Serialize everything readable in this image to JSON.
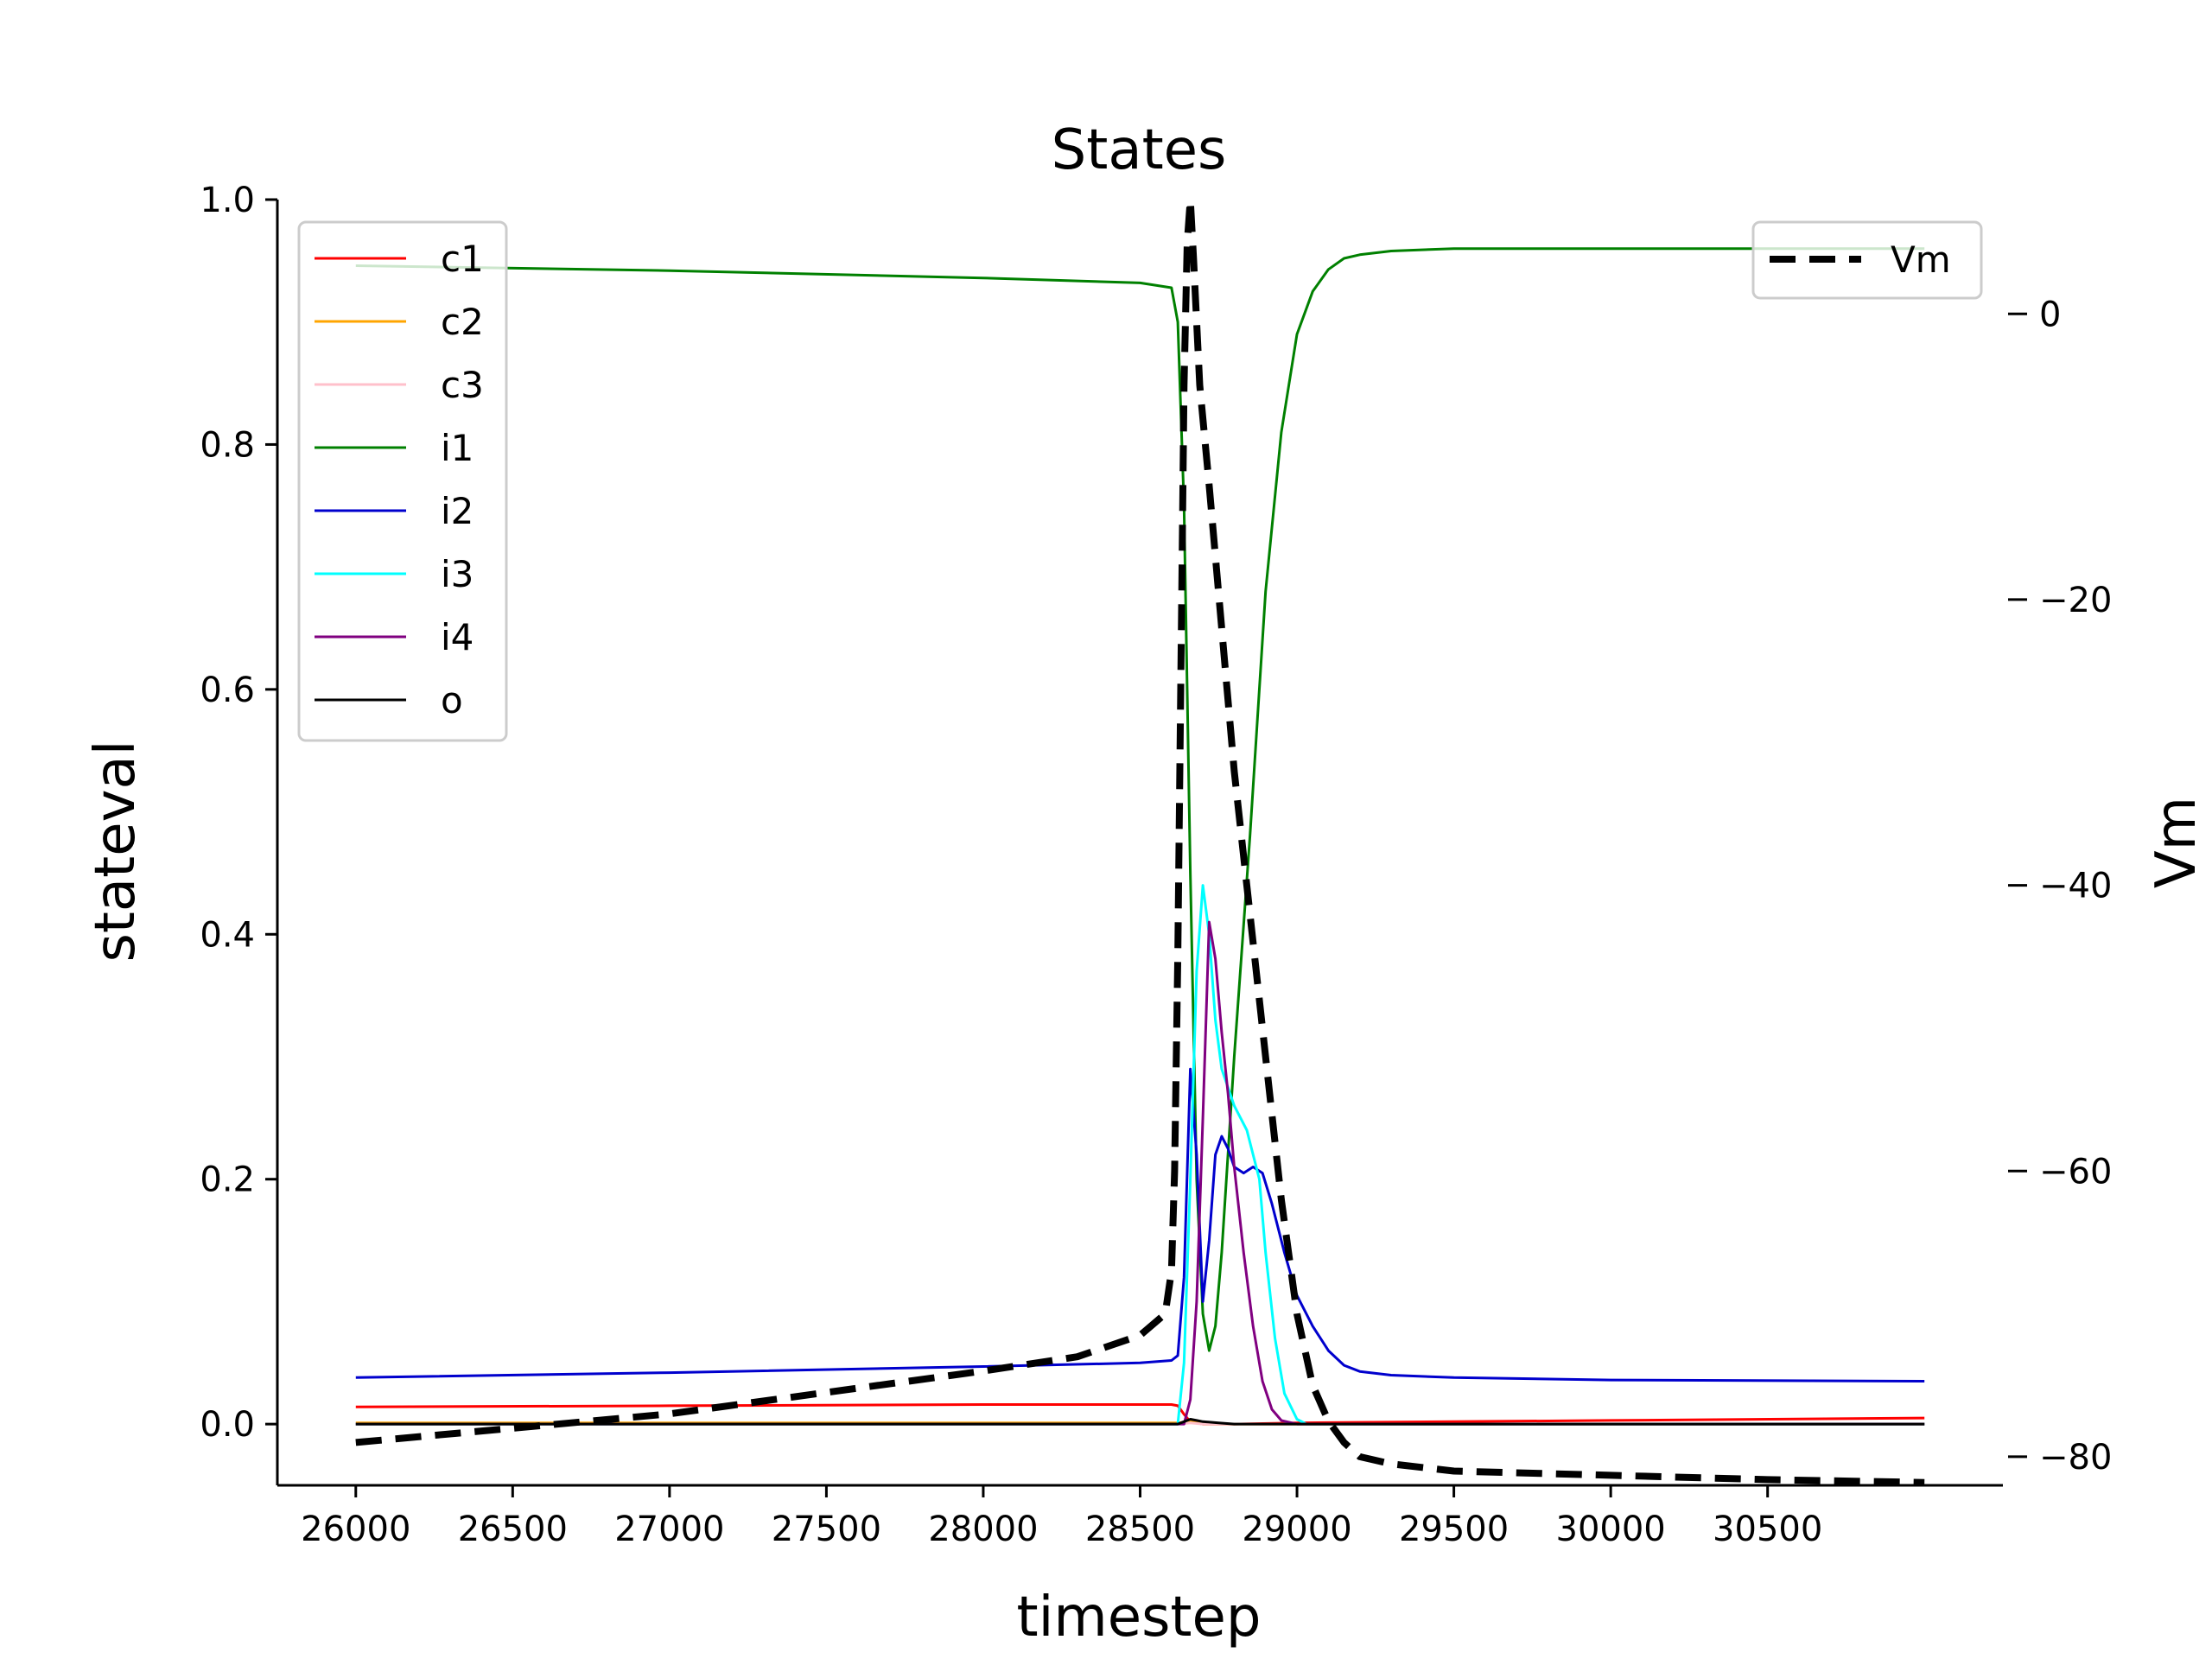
{
  "chart_data": {
    "type": "line",
    "title": "States",
    "xlabel": "timestep",
    "ylabel": "stateval",
    "y2label": "Vm",
    "xlim": [
      25750,
      31250
    ],
    "ylim": [
      -0.05,
      1.0
    ],
    "y2lim": [
      -82,
      8
    ],
    "xticks": [
      26000,
      26500,
      27000,
      27500,
      28000,
      28500,
      29000,
      29500,
      30000,
      30500
    ],
    "yticks": [
      0.0,
      0.2,
      0.4,
      0.6,
      0.8,
      1.0
    ],
    "ytick_labels": [
      "0.0",
      "0.2",
      "0.4",
      "0.6",
      "0.8",
      "1.0"
    ],
    "y2ticks": [
      0,
      -20,
      -40,
      -60,
      -80
    ],
    "y2tick_labels": [
      "0",
      "−20",
      "−40",
      "−60",
      "−80"
    ],
    "grid": false,
    "legend_left": "top-left",
    "legend_right": "top-right",
    "series": [
      {
        "name": "c1",
        "color": "#ff0000",
        "axis": "left",
        "width": 3,
        "x": [
          26000,
          27000,
          28000,
          28600,
          28620,
          28640,
          28660,
          28700,
          28800,
          29000,
          29500,
          30000,
          31000
        ],
        "y": [
          0.014,
          0.015,
          0.016,
          0.016,
          0.015,
          0.008,
          0.002,
          0.0,
          0.0,
          0.001,
          0.002,
          0.003,
          0.005
        ]
      },
      {
        "name": "c2",
        "color": "#ffa500",
        "axis": "left",
        "width": 3,
        "x": [
          26000,
          28620,
          28660,
          28700,
          31000
        ],
        "y": [
          0.001,
          0.001,
          0.002,
          0.0,
          0.0
        ]
      },
      {
        "name": "c3",
        "color": "#ffc0cb",
        "axis": "left",
        "width": 3,
        "x": [
          26000,
          28620,
          28660,
          28700,
          31000
        ],
        "y": [
          0.0,
          0.0,
          0.001,
          0.0,
          0.0
        ]
      },
      {
        "name": "i1",
        "color": "#008000",
        "axis": "left",
        "width": 3,
        "x": [
          26000,
          27000,
          28000,
          28500,
          28600,
          28620,
          28640,
          28660,
          28680,
          28700,
          28720,
          28740,
          28760,
          28800,
          28850,
          28900,
          28950,
          29000,
          29050,
          29100,
          29150,
          29200,
          29300,
          29500,
          30000,
          31000
        ],
        "y": [
          0.946,
          0.942,
          0.936,
          0.932,
          0.928,
          0.9,
          0.75,
          0.45,
          0.2,
          0.09,
          0.06,
          0.08,
          0.14,
          0.3,
          0.48,
          0.68,
          0.81,
          0.89,
          0.925,
          0.943,
          0.952,
          0.955,
          0.958,
          0.96,
          0.96,
          0.96
        ]
      },
      {
        "name": "i2",
        "color": "#0000cd",
        "axis": "left",
        "width": 3,
        "x": [
          26000,
          27000,
          28000,
          28500,
          28600,
          28620,
          28640,
          28660,
          28680,
          28700,
          28720,
          28740,
          28760,
          28780,
          28800,
          28830,
          28860,
          28890,
          28920,
          28960,
          29000,
          29050,
          29100,
          29150,
          29200,
          29300,
          29500,
          30000,
          31000
        ],
        "y": [
          0.038,
          0.042,
          0.047,
          0.05,
          0.052,
          0.056,
          0.12,
          0.29,
          0.22,
          0.1,
          0.15,
          0.22,
          0.235,
          0.225,
          0.21,
          0.205,
          0.21,
          0.205,
          0.18,
          0.14,
          0.105,
          0.08,
          0.06,
          0.048,
          0.043,
          0.04,
          0.038,
          0.036,
          0.035
        ]
      },
      {
        "name": "i3",
        "color": "#00ffff",
        "axis": "left",
        "width": 3,
        "x": [
          26000,
          28620,
          28640,
          28660,
          28680,
          28700,
          28720,
          28740,
          28760,
          28800,
          28840,
          28880,
          28900,
          28930,
          28960,
          29000,
          29030,
          31000
        ],
        "y": [
          0.0,
          0.0,
          0.05,
          0.2,
          0.37,
          0.44,
          0.4,
          0.33,
          0.29,
          0.26,
          0.24,
          0.2,
          0.14,
          0.07,
          0.025,
          0.004,
          0.0,
          0.0
        ]
      },
      {
        "name": "i4",
        "color": "#800080",
        "axis": "left",
        "width": 3,
        "x": [
          26000,
          28640,
          28660,
          28680,
          28700,
          28720,
          28740,
          28760,
          28780,
          28800,
          28830,
          28860,
          28890,
          28920,
          28950,
          29000,
          31000
        ],
        "y": [
          0.0,
          0.0,
          0.02,
          0.1,
          0.25,
          0.41,
          0.38,
          0.32,
          0.27,
          0.21,
          0.14,
          0.08,
          0.035,
          0.012,
          0.003,
          0.0,
          0.0
        ]
      },
      {
        "name": "o",
        "color": "#000000",
        "axis": "left",
        "width": 3,
        "x": [
          26000,
          28620,
          28640,
          28660,
          28680,
          28700,
          28750,
          28800,
          28900,
          31000
        ],
        "y": [
          0.0,
          0.0,
          0.002,
          0.004,
          0.003,
          0.002,
          0.001,
          0.0,
          0.0,
          0.0
        ]
      },
      {
        "name": "Vm",
        "color": "#000000",
        "axis": "right",
        "width": 8,
        "dash": "30 16",
        "x": [
          26000,
          26500,
          27000,
          27500,
          28000,
          28300,
          28500,
          28580,
          28600,
          28610,
          28620,
          28630,
          28640,
          28650,
          28660,
          28670,
          28690,
          28720,
          28760,
          28800,
          28850,
          28900,
          28950,
          29000,
          29050,
          29100,
          29150,
          29200,
          29300,
          29500,
          30000,
          30500,
          31000
        ],
        "y": [
          -79,
          -78,
          -77,
          -75.5,
          -74,
          -73,
          -71.5,
          -70,
          -67,
          -60,
          -45,
          -25,
          -5,
          5,
          8,
          4,
          -5,
          -12,
          -22,
          -32,
          -42,
          -52,
          -62,
          -70,
          -75,
          -77.5,
          -79,
          -80,
          -80.5,
          -81,
          -81.3,
          -81.6,
          -81.8
        ]
      }
    ]
  }
}
